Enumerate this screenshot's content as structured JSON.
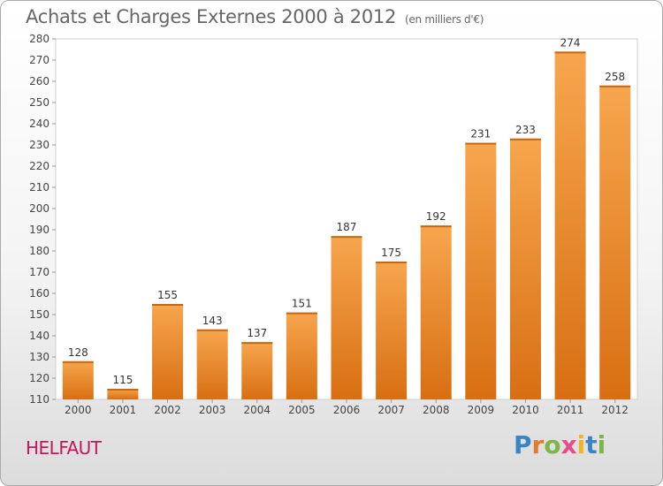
{
  "header": {
    "title": "Achats et Charges Externes 2000 à 2012",
    "unit": "(en milliers d'€)"
  },
  "footer": {
    "commune": "HELFAUT",
    "logo_letters": [
      "P",
      "r",
      "o",
      "x",
      "i",
      "t",
      "i"
    ]
  },
  "chart_data": {
    "type": "bar",
    "title": "Achats et Charges Externes 2000 à 2012",
    "subtitle": "(en milliers d'€)",
    "categories": [
      "2000",
      "2001",
      "2002",
      "2003",
      "2004",
      "2005",
      "2006",
      "2007",
      "2008",
      "2009",
      "2010",
      "2011",
      "2012"
    ],
    "values": [
      128,
      115,
      155,
      143,
      137,
      151,
      187,
      175,
      192,
      231,
      233,
      274,
      258
    ],
    "ylim": [
      110,
      280
    ],
    "yticks": [
      110,
      120,
      130,
      140,
      150,
      160,
      170,
      180,
      190,
      200,
      210,
      220,
      230,
      240,
      250,
      260,
      270,
      280
    ],
    "grid": false,
    "bar_color": "#f0922e",
    "bar_color_dark": "#d97317"
  }
}
